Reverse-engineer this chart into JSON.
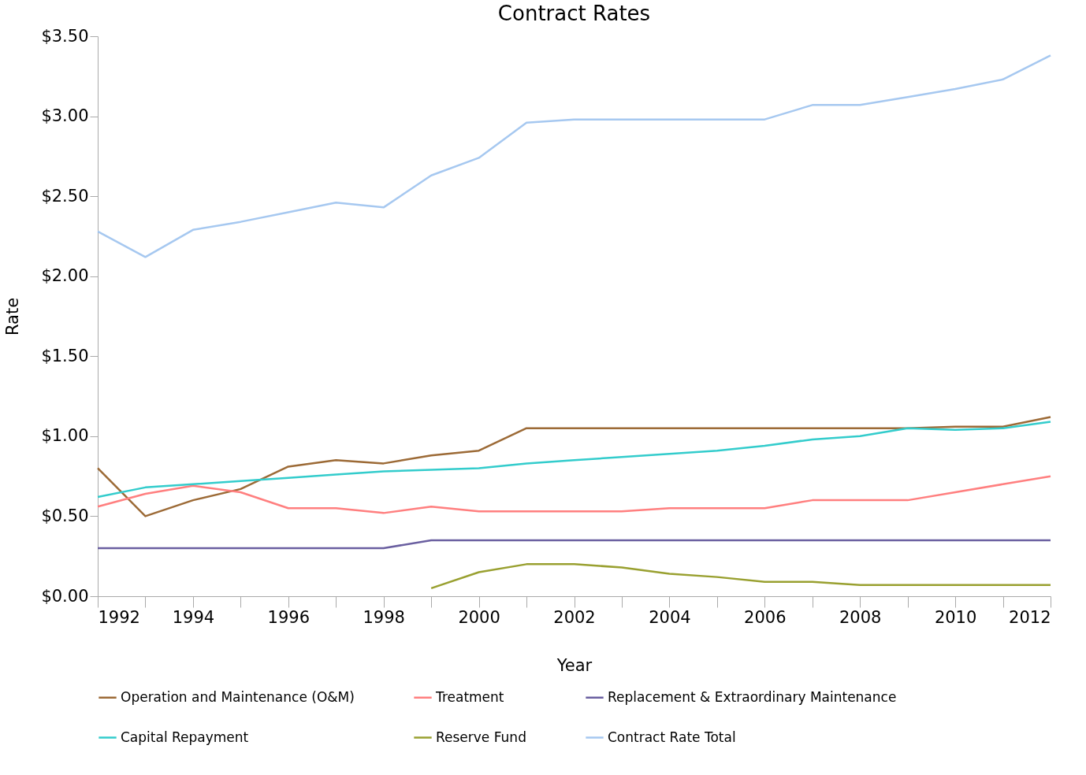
{
  "chart_data": {
    "type": "line",
    "title": "Contract Rates",
    "xlabel": "Year",
    "ylabel": "Rate",
    "x": [
      1992,
      1993,
      1994,
      1995,
      1996,
      1997,
      1998,
      1999,
      2000,
      2001,
      2002,
      2003,
      2004,
      2005,
      2006,
      2007,
      2008,
      2009,
      2010,
      2011,
      2012
    ],
    "series": [
      {
        "name": "Operation and Maintenance (O&M)",
        "color": "#9c6a36",
        "values": [
          0.8,
          0.5,
          0.6,
          0.67,
          0.81,
          0.85,
          0.83,
          0.88,
          0.91,
          1.05,
          1.05,
          1.05,
          1.05,
          1.05,
          1.05,
          1.05,
          1.05,
          1.05,
          1.06,
          1.06,
          1.12
        ]
      },
      {
        "name": "Treatment",
        "color": "#ff7f7f",
        "values": [
          0.56,
          0.64,
          0.69,
          0.65,
          0.55,
          0.55,
          0.52,
          0.56,
          0.53,
          0.53,
          0.53,
          0.53,
          0.55,
          0.55,
          0.55,
          0.6,
          0.6,
          0.6,
          0.65,
          0.7,
          0.75
        ]
      },
      {
        "name": "Replacement & Extraordinary Maintenance",
        "color": "#6a5fa0",
        "values": [
          0.3,
          0.3,
          0.3,
          0.3,
          0.3,
          0.3,
          0.3,
          0.35,
          0.35,
          0.35,
          0.35,
          0.35,
          0.35,
          0.35,
          0.35,
          0.35,
          0.35,
          0.35,
          0.35,
          0.35,
          0.35
        ]
      },
      {
        "name": "Capital Repayment",
        "color": "#33cccc",
        "values": [
          0.62,
          0.68,
          0.7,
          0.72,
          0.74,
          0.76,
          0.78,
          0.79,
          0.8,
          0.83,
          0.85,
          0.87,
          0.89,
          0.91,
          0.94,
          0.98,
          1.0,
          1.05,
          1.04,
          1.05,
          1.09
        ]
      },
      {
        "name": "Reserve Fund",
        "color": "#99a030",
        "values": [
          null,
          null,
          null,
          null,
          null,
          null,
          null,
          0.05,
          0.15,
          0.2,
          0.2,
          0.18,
          0.14,
          0.12,
          0.09,
          0.09,
          0.07,
          0.07,
          0.07,
          0.07,
          0.07
        ]
      },
      {
        "name": "Contract Rate Total",
        "color": "#a6c8f0",
        "values": [
          2.28,
          2.12,
          2.29,
          2.34,
          2.4,
          2.46,
          2.43,
          2.63,
          2.74,
          2.96,
          2.98,
          2.98,
          2.98,
          2.98,
          2.98,
          3.07,
          3.07,
          3.12,
          3.17,
          3.23,
          3.38
        ]
      }
    ],
    "xlim": [
      1992,
      2012
    ],
    "xticks": [
      1992,
      {
        "value": 1993,
        "label": null
      },
      1994,
      {
        "value": 1995,
        "label": null
      },
      1996,
      {
        "value": 1997,
        "label": null
      },
      1998,
      {
        "value": 1999,
        "label": null
      },
      2000,
      {
        "value": 2001,
        "label": null
      },
      2002,
      {
        "value": 2003,
        "label": null
      },
      2004,
      {
        "value": 2005,
        "label": null
      },
      2006,
      {
        "value": 2007,
        "label": null
      },
      2008,
      {
        "value": 2009,
        "label": null
      },
      2010,
      {
        "value": 2011,
        "label": null
      },
      2012
    ],
    "ylim": [
      0,
      3.5
    ],
    "yticks": [
      {
        "value": 0,
        "label": "$0.00"
      },
      {
        "value": 0.5,
        "label": "$0.50"
      },
      {
        "value": 1,
        "label": "$1.00"
      },
      {
        "value": 1.5,
        "label": "$1.50"
      },
      {
        "value": 2,
        "label": "$2.00"
      },
      {
        "value": 2.5,
        "label": "$2.50"
      },
      {
        "value": 3,
        "label": "$3.00"
      },
      {
        "value": 3.5,
        "label": "$3.50"
      }
    ],
    "grid": false,
    "legend": "bottom",
    "marker": "none",
    "line_style": "solid"
  }
}
